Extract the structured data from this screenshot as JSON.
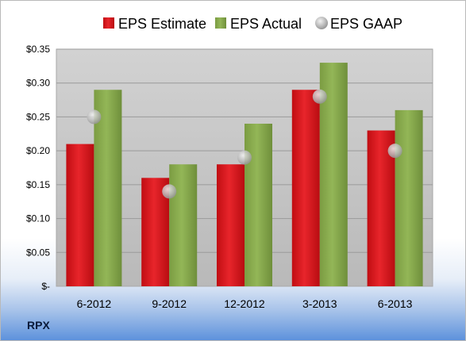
{
  "ticker": "RPX",
  "colors": {
    "estimate": "#d9141b",
    "actual": "#8aad4e",
    "gaap": "#b4b4b4",
    "plot_bg": "#c8c8c8"
  },
  "chart_data": {
    "type": "bar",
    "categories": [
      "6-2012",
      "9-2012",
      "12-2012",
      "3-2013",
      "6-2013"
    ],
    "series": [
      {
        "name": "EPS Estimate",
        "kind": "bar",
        "values": [
          0.21,
          0.16,
          0.18,
          0.29,
          0.23
        ]
      },
      {
        "name": "EPS Actual",
        "kind": "bar",
        "values": [
          0.29,
          0.18,
          0.24,
          0.33,
          0.26
        ]
      },
      {
        "name": "EPS GAAP",
        "kind": "marker",
        "values": [
          0.25,
          0.14,
          0.19,
          0.28,
          0.2
        ]
      }
    ],
    "ylim": [
      0,
      0.35
    ],
    "yticks": [
      0,
      0.05,
      0.1,
      0.15,
      0.2,
      0.25,
      0.3,
      0.35
    ],
    "ytick_labels": [
      "$-",
      "$0.05",
      "$0.10",
      "$0.15",
      "$0.20",
      "$0.25",
      "$0.30",
      "$0.35"
    ],
    "grid": true,
    "legend_position": "top",
    "title": "",
    "xlabel": "",
    "ylabel": ""
  }
}
